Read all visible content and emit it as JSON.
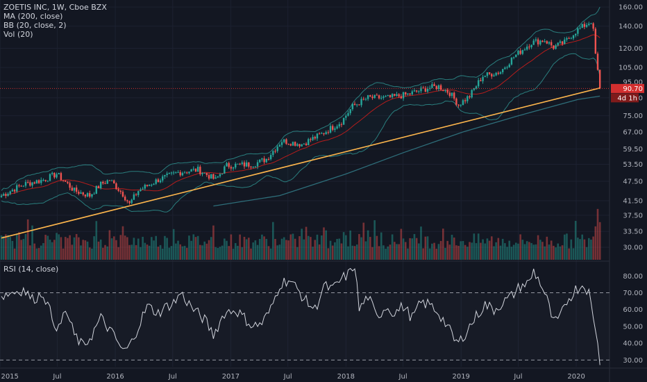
{
  "header": {
    "title": "ZOETIS INC, 1W, Cboe BZX",
    "ma": "MA (200, close)",
    "bb": "BB (20, close, 2)",
    "vol": "Vol (20)",
    "rsi": "RSI (14, close)"
  },
  "price_tag": {
    "value": "90.70",
    "countdown": "4d 1h"
  },
  "colors": {
    "background": "#131722",
    "up": "#26a69a",
    "down": "#ef5350",
    "ma": "#2e6e7a",
    "bb_basis": "#b71c1c",
    "bb_band": "#2a7e7e",
    "trendline": "#ffb74d",
    "rsi": "#d1d4dc",
    "price_line": "#d32f2f"
  },
  "chart_data": [
    {
      "type": "candlestick",
      "title": "ZOETIS INC, 1W, Cboe BZX",
      "y_scale": "log",
      "ylim": [
        27.5,
        168
      ],
      "y_ticks": [
        "160.00",
        "140.00",
        "120.00",
        "105.00",
        "95.00",
        "85.00",
        "75.00",
        "67.00",
        "59.50",
        "53.50",
        "47.50",
        "41.50",
        "37.50",
        "33.50",
        "30.00"
      ],
      "x_ticks": [
        "2015",
        "Jul",
        "2016",
        "Jul",
        "2017",
        "Jul",
        "2018",
        "Jul",
        "2019",
        "Jul",
        "2020"
      ],
      "x_range": [
        "2015-01-05",
        "2020-03-20"
      ],
      "last_price": 90.7,
      "price_path": [
        [
          "2015-01-05",
          43.0
        ],
        [
          "2015-03-16",
          46.5
        ],
        [
          "2015-05-18",
          48.0
        ],
        [
          "2015-06-29",
          50.0
        ],
        [
          "2015-08-24",
          44.5
        ],
        [
          "2015-10-12",
          43.0
        ],
        [
          "2015-11-16",
          46.5
        ],
        [
          "2015-12-14",
          48.0
        ],
        [
          "2016-01-25",
          43.5
        ],
        [
          "2016-02-15",
          40.5
        ],
        [
          "2016-03-14",
          44.5
        ],
        [
          "2016-05-16",
          48.0
        ],
        [
          "2016-07-18",
          50.5
        ],
        [
          "2016-09-19",
          51.5
        ],
        [
          "2016-11-14",
          48.0
        ],
        [
          "2016-12-19",
          53.0
        ],
        [
          "2017-03-13",
          53.5
        ],
        [
          "2017-04-24",
          55.5
        ],
        [
          "2017-06-12",
          63.0
        ],
        [
          "2017-08-14",
          61.5
        ],
        [
          "2017-10-16",
          66.0
        ],
        [
          "2017-12-18",
          72.0
        ],
        [
          "2018-01-22",
          80.0
        ],
        [
          "2018-03-12",
          85.0
        ],
        [
          "2018-05-14",
          85.0
        ],
        [
          "2018-07-16",
          87.0
        ],
        [
          "2018-09-17",
          91.0
        ],
        [
          "2018-10-22",
          92.0
        ],
        [
          "2018-11-26",
          88.0
        ],
        [
          "2018-12-24",
          81.0
        ],
        [
          "2019-01-28",
          86.0
        ],
        [
          "2019-03-11",
          99.0
        ],
        [
          "2019-05-06",
          102.0
        ],
        [
          "2019-06-17",
          113.0
        ],
        [
          "2019-08-12",
          125.0
        ],
        [
          "2019-09-23",
          127.0
        ],
        [
          "2019-10-21",
          121.0
        ],
        [
          "2019-11-25",
          125.0
        ],
        [
          "2019-12-30",
          135.0
        ],
        [
          "2020-02-17",
          145.0
        ],
        [
          "2020-02-24",
          135.0
        ],
        [
          "2020-03-02",
          115.0
        ],
        [
          "2020-03-09",
          102.0
        ],
        [
          "2020-03-16",
          90.7
        ]
      ],
      "moving_average": {
        "name": "MA (200, close)",
        "path": [
          [
            "2016-11-07",
            40.0
          ],
          [
            "2017-06-05",
            43.0
          ],
          [
            "2018-01-01",
            50.0
          ],
          [
            "2018-07-02",
            58.0
          ],
          [
            "2019-01-07",
            67.0
          ],
          [
            "2019-07-01",
            75.0
          ],
          [
            "2020-01-06",
            84.0
          ],
          [
            "2020-03-16",
            86.0
          ]
        ]
      },
      "trendline": {
        "path": [
          [
            "2015-01-05",
            32.0
          ],
          [
            "2020-03-16",
            91.0
          ]
        ]
      },
      "volume_ylim": [
        0,
        60
      ]
    },
    {
      "type": "line",
      "title": "RSI (14, close)",
      "ylim": [
        26,
        88
      ],
      "y_ticks": [
        "80.00",
        "70.00",
        "60.00",
        "50.00",
        "40.00",
        "30.00"
      ],
      "reference_lines": [
        70,
        30
      ],
      "path": [
        [
          "2015-01-05",
          68
        ],
        [
          "2015-02-02",
          70
        ],
        [
          "2015-03-16",
          72
        ],
        [
          "2015-04-13",
          66
        ],
        [
          "2015-05-18",
          70
        ],
        [
          "2015-06-15",
          55
        ],
        [
          "2015-07-06",
          48
        ],
        [
          "2015-07-27",
          60
        ],
        [
          "2015-08-24",
          45
        ],
        [
          "2015-09-21",
          38
        ],
        [
          "2015-10-19",
          45
        ],
        [
          "2015-11-16",
          55
        ],
        [
          "2015-12-14",
          48
        ],
        [
          "2016-01-11",
          40
        ],
        [
          "2016-01-25",
          35
        ],
        [
          "2016-02-15",
          38
        ],
        [
          "2016-03-14",
          50
        ],
        [
          "2016-04-11",
          62
        ],
        [
          "2016-05-16",
          58
        ],
        [
          "2016-06-13",
          62
        ],
        [
          "2016-07-11",
          65
        ],
        [
          "2016-07-25",
          70
        ],
        [
          "2016-09-05",
          60
        ],
        [
          "2016-10-10",
          54
        ],
        [
          "2016-11-07",
          45
        ],
        [
          "2016-12-12",
          58
        ],
        [
          "2017-01-16",
          60
        ],
        [
          "2017-02-13",
          55
        ],
        [
          "2017-03-13",
          50
        ],
        [
          "2017-04-10",
          52
        ],
        [
          "2017-05-08",
          60
        ],
        [
          "2017-06-05",
          75
        ],
        [
          "2017-07-03",
          78
        ],
        [
          "2017-07-31",
          72
        ],
        [
          "2017-08-28",
          65
        ],
        [
          "2017-09-25",
          60
        ],
        [
          "2017-10-23",
          74
        ],
        [
          "2017-11-20",
          72
        ],
        [
          "2017-12-18",
          78
        ],
        [
          "2018-01-15",
          82
        ],
        [
          "2018-01-29",
          87
        ],
        [
          "2018-02-12",
          60
        ],
        [
          "2018-03-12",
          68
        ],
        [
          "2018-04-09",
          55
        ],
        [
          "2018-05-07",
          62
        ],
        [
          "2018-06-04",
          58
        ],
        [
          "2018-07-02",
          62
        ],
        [
          "2018-07-30",
          55
        ],
        [
          "2018-08-27",
          64
        ],
        [
          "2018-09-24",
          63
        ],
        [
          "2018-10-22",
          58
        ],
        [
          "2018-11-19",
          50
        ],
        [
          "2018-12-10",
          42
        ],
        [
          "2018-12-24",
          40
        ],
        [
          "2019-01-21",
          48
        ],
        [
          "2019-02-18",
          56
        ],
        [
          "2019-03-18",
          63
        ],
        [
          "2019-04-15",
          60
        ],
        [
          "2019-05-13",
          64
        ],
        [
          "2019-06-10",
          68
        ],
        [
          "2019-07-08",
          74
        ],
        [
          "2019-08-05",
          76
        ],
        [
          "2019-08-19",
          83
        ],
        [
          "2019-09-09",
          76
        ],
        [
          "2019-09-30",
          66
        ],
        [
          "2019-10-21",
          52
        ],
        [
          "2019-11-11",
          55
        ],
        [
          "2019-12-02",
          65
        ],
        [
          "2019-12-30",
          72
        ],
        [
          "2020-01-27",
          75
        ],
        [
          "2020-02-10",
          70
        ],
        [
          "2020-02-24",
          55
        ],
        [
          "2020-03-09",
          40
        ],
        [
          "2020-03-16",
          27
        ]
      ]
    }
  ]
}
